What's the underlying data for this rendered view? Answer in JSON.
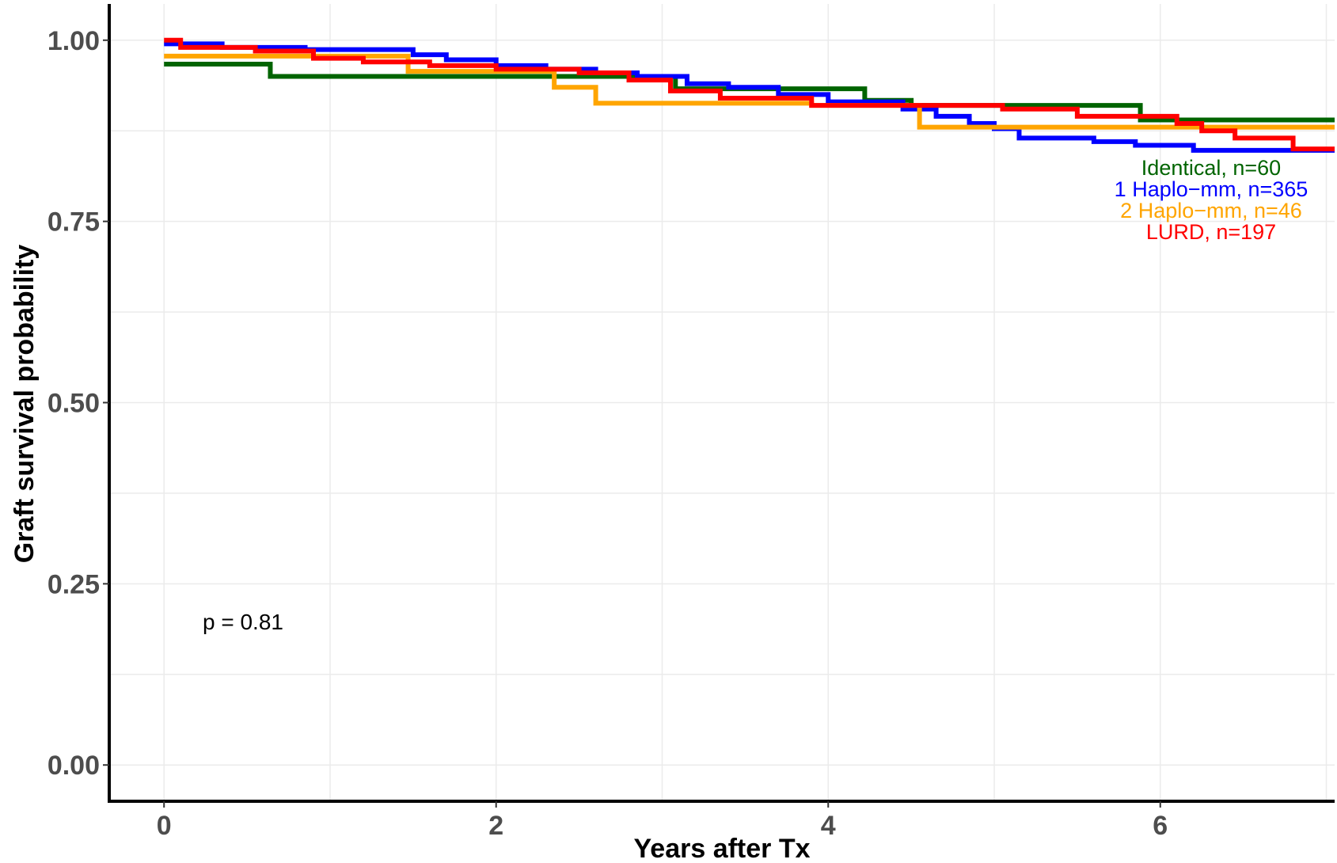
{
  "chart_data": {
    "type": "line",
    "step": true,
    "xlabel": "Years after Tx",
    "ylabel": "Graft survival probability",
    "xlim": [
      -0.33,
      7.05
    ],
    "ylim": [
      -0.05,
      1.05
    ],
    "xticks": [
      0,
      2,
      4,
      6
    ],
    "yticks": [
      0.0,
      0.25,
      0.5,
      0.75,
      1.0
    ],
    "ytick_labels": [
      "0.00",
      "0.25",
      "0.50",
      "0.75",
      "1.00"
    ],
    "xtick_labels": [
      "0",
      "2",
      "4",
      "6"
    ],
    "grid": true,
    "annotation": "p = 0.81",
    "legend_placement": "right, inside plot near curve ends",
    "series": [
      {
        "name": "Identical, n=60",
        "color": "#006400",
        "x": [
          0,
          0.64,
          1.45,
          2.35,
          2.6,
          3.08,
          4.22,
          4.5,
          5.05,
          5.88,
          7.05
        ],
        "y": [
          0.967,
          0.95,
          0.95,
          0.95,
          0.95,
          0.933,
          0.917,
          0.91,
          0.91,
          0.89,
          0.89
        ]
      },
      {
        "name": "1 Haplo−mm, n=365",
        "color": "#0000ff",
        "x": [
          0,
          0.35,
          0.85,
          1.5,
          1.7,
          2.0,
          2.3,
          2.6,
          2.85,
          3.15,
          3.4,
          3.7,
          4.0,
          4.45,
          4.65,
          4.85,
          5.0,
          5.15,
          5.6,
          5.85,
          6.2,
          7.05
        ],
        "y": [
          0.995,
          0.99,
          0.987,
          0.98,
          0.973,
          0.965,
          0.96,
          0.955,
          0.95,
          0.94,
          0.935,
          0.925,
          0.915,
          0.905,
          0.895,
          0.885,
          0.878,
          0.865,
          0.86,
          0.855,
          0.848,
          0.848
        ]
      },
      {
        "name": "2 Haplo−mm, n=46",
        "color": "#ffa500",
        "x": [
          0,
          1.47,
          2.35,
          2.6,
          3.9,
          4.55,
          7.05
        ],
        "y": [
          0.978,
          0.957,
          0.935,
          0.913,
          0.91,
          0.88,
          0.88
        ]
      },
      {
        "name": "LURD, n=197",
        "color": "#ff0000",
        "x": [
          0,
          0.1,
          0.55,
          0.9,
          1.2,
          1.6,
          2.0,
          2.5,
          2.8,
          3.05,
          3.35,
          3.9,
          5.05,
          5.5,
          6.1,
          6.25,
          6.45,
          6.8,
          7.05
        ],
        "y": [
          1.0,
          0.99,
          0.985,
          0.975,
          0.97,
          0.965,
          0.96,
          0.955,
          0.945,
          0.93,
          0.92,
          0.91,
          0.905,
          0.895,
          0.885,
          0.875,
          0.865,
          0.85,
          0.85
        ]
      }
    ]
  }
}
